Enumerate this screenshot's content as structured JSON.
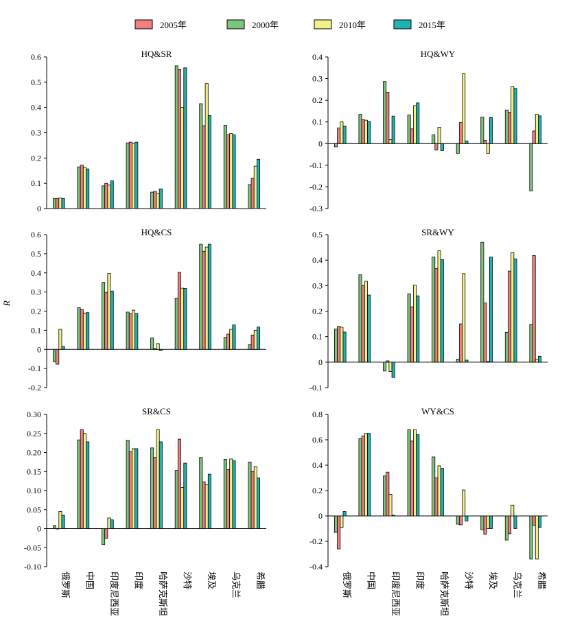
{
  "legend": [
    {
      "label": "2005年",
      "color": "#f08080"
    },
    {
      "label": "2000年",
      "color": "#7ec47a"
    },
    {
      "label": "2010年",
      "color": "#f3ef8a"
    },
    {
      "label": "2015年",
      "color": "#1fb3b3"
    }
  ],
  "y_axis_label": "R",
  "categories": [
    "俄罗斯",
    "中国",
    "印度尼西亚",
    "印度",
    "哈萨克斯坦",
    "沙特",
    "埃及",
    "乌克兰",
    "希腊"
  ],
  "chart_data": [
    {
      "type": "bar",
      "title": "HQ&SR",
      "ylim": [
        0,
        0.6
      ],
      "yticks": [
        "0",
        "0.1",
        "0.2",
        "0.3",
        "0.4",
        "0.5",
        "0.6"
      ],
      "series_order": [
        "2000年",
        "2005年",
        "2010年",
        "2015年"
      ],
      "series": [
        {
          "name": "2000年",
          "values": [
            0.04,
            0.165,
            0.09,
            0.26,
            0.065,
            0.565,
            0.415,
            0.33,
            0.095
          ]
        },
        {
          "name": "2005年",
          "values": [
            0.04,
            0.172,
            0.1,
            0.263,
            0.068,
            0.55,
            0.328,
            0.292,
            0.12
          ]
        },
        {
          "name": "2010年",
          "values": [
            0.042,
            0.163,
            0.093,
            0.258,
            0.06,
            0.4,
            0.495,
            0.297,
            0.168
          ]
        },
        {
          "name": "2015年",
          "values": [
            0.04,
            0.157,
            0.11,
            0.263,
            0.078,
            0.557,
            0.368,
            0.292,
            0.195
          ]
        }
      ]
    },
    {
      "type": "bar",
      "title": "HQ&WY",
      "ylim": [
        -0.3,
        0.4
      ],
      "yticks": [
        "-0.3",
        "-0.2",
        "-0.1",
        "0",
        "0.1",
        "0.2",
        "0.3",
        "0.4"
      ],
      "series_order": [
        "2000年",
        "2005年",
        "2010年",
        "2015年"
      ],
      "series": [
        {
          "name": "2000年",
          "values": [
            -0.015,
            0.135,
            0.287,
            0.132,
            0.04,
            -0.045,
            0.122,
            0.155,
            -0.218
          ]
        },
        {
          "name": "2005年",
          "values": [
            0.072,
            0.11,
            0.237,
            0.068,
            -0.03,
            0.097,
            0.015,
            0.145,
            0.058
          ]
        },
        {
          "name": "2010年",
          "values": [
            0.1,
            0.108,
            0.018,
            0.175,
            0.075,
            0.323,
            -0.045,
            0.263,
            0.135
          ]
        },
        {
          "name": "2015年",
          "values": [
            0.08,
            0.102,
            0.127,
            0.188,
            -0.032,
            0.012,
            0.12,
            0.255,
            0.128
          ]
        }
      ]
    },
    {
      "type": "bar",
      "title": "HQ&CS",
      "ylim": [
        -0.2,
        0.6
      ],
      "yticks": [
        "-0.2",
        "-0.1",
        "0",
        "0.1",
        "0.2",
        "0.3",
        "0.4",
        "0.5",
        "0.6"
      ],
      "series_order": [
        "2000年",
        "2005年",
        "2010年",
        "2015年"
      ],
      "series": [
        {
          "name": "2000年",
          "values": [
            -0.065,
            0.218,
            0.35,
            0.195,
            0.06,
            0.268,
            0.55,
            0.063,
            0.025
          ]
        },
        {
          "name": "2005年",
          "values": [
            -0.078,
            0.208,
            0.298,
            0.187,
            0.005,
            0.403,
            0.513,
            0.08,
            0.075
          ]
        },
        {
          "name": "2010年",
          "values": [
            0.105,
            0.19,
            0.397,
            0.205,
            0.03,
            0.32,
            0.535,
            0.105,
            0.1
          ]
        },
        {
          "name": "2015年",
          "values": [
            0.015,
            0.192,
            0.305,
            0.188,
            -0.005,
            0.318,
            0.55,
            0.128,
            0.117
          ]
        }
      ]
    },
    {
      "type": "bar",
      "title": "SR&WY",
      "ylim": [
        -0.1,
        0.5
      ],
      "yticks": [
        "-0.1",
        "0",
        "0.1",
        "0.2",
        "0.3",
        "0.4",
        "0.5"
      ],
      "series_order": [
        "2000年",
        "2005年",
        "2010年",
        "2015年"
      ],
      "series": [
        {
          "name": "2000年",
          "values": [
            0.13,
            0.343,
            -0.035,
            0.268,
            0.412,
            0.012,
            0.47,
            0.117,
            0.148
          ]
        },
        {
          "name": "2005年",
          "values": [
            0.14,
            0.3,
            0.005,
            0.217,
            0.367,
            0.15,
            0.232,
            0.357,
            0.418
          ]
        },
        {
          "name": "2010年",
          "values": [
            0.137,
            0.317,
            -0.037,
            0.302,
            0.437,
            0.347,
            0.003,
            0.43,
            0.012
          ]
        },
        {
          "name": "2015年",
          "values": [
            0.118,
            0.263,
            -0.06,
            0.26,
            0.402,
            0.008,
            0.412,
            0.405,
            0.023
          ]
        }
      ]
    },
    {
      "type": "bar",
      "title": "SR&CS",
      "ylim": [
        -0.1,
        0.3
      ],
      "yticks": [
        "-0.10",
        "-0.05",
        "0",
        "0.05",
        "0.10",
        "0.15",
        "0.20",
        "0.25",
        "0.30"
      ],
      "series_order": [
        "2000年",
        "2005年",
        "2010年",
        "2015年"
      ],
      "series": [
        {
          "name": "2000年",
          "values": [
            0.008,
            0.233,
            -0.042,
            0.232,
            0.212,
            0.153,
            0.187,
            0.182,
            0.175
          ]
        },
        {
          "name": "2005年",
          "values": [
            0.0,
            0.26,
            -0.025,
            0.202,
            0.187,
            0.235,
            0.123,
            0.155,
            0.15
          ]
        },
        {
          "name": "2010年",
          "values": [
            0.045,
            0.25,
            0.028,
            0.21,
            0.26,
            0.108,
            0.115,
            0.183,
            0.163
          ]
        },
        {
          "name": "2015年",
          "values": [
            0.035,
            0.228,
            0.023,
            0.21,
            0.228,
            0.172,
            0.143,
            0.178,
            0.133
          ]
        }
      ]
    },
    {
      "type": "bar",
      "title": "WY&CS",
      "ylim": [
        -0.4,
        0.8
      ],
      "yticks": [
        "-0.4",
        "-0.2",
        "0",
        "0.2",
        "0.4",
        "0.6",
        "0.8"
      ],
      "series_order": [
        "2000年",
        "2005年",
        "2010年",
        "2015年"
      ],
      "series": [
        {
          "name": "2000年",
          "values": [
            -0.13,
            0.61,
            0.315,
            0.68,
            0.465,
            -0.065,
            -0.11,
            -0.19,
            -0.34
          ]
        },
        {
          "name": "2005年",
          "values": [
            -0.26,
            0.63,
            0.345,
            0.59,
            0.3,
            -0.07,
            -0.145,
            -0.14,
            -0.075
          ]
        },
        {
          "name": "2010年",
          "values": [
            -0.09,
            0.65,
            0.17,
            0.68,
            0.395,
            0.205,
            -0.1,
            0.085,
            -0.34
          ]
        },
        {
          "name": "2015年",
          "values": [
            0.035,
            0.65,
            0.005,
            0.64,
            0.375,
            -0.04,
            -0.1,
            -0.1,
            -0.09
          ]
        }
      ]
    }
  ]
}
